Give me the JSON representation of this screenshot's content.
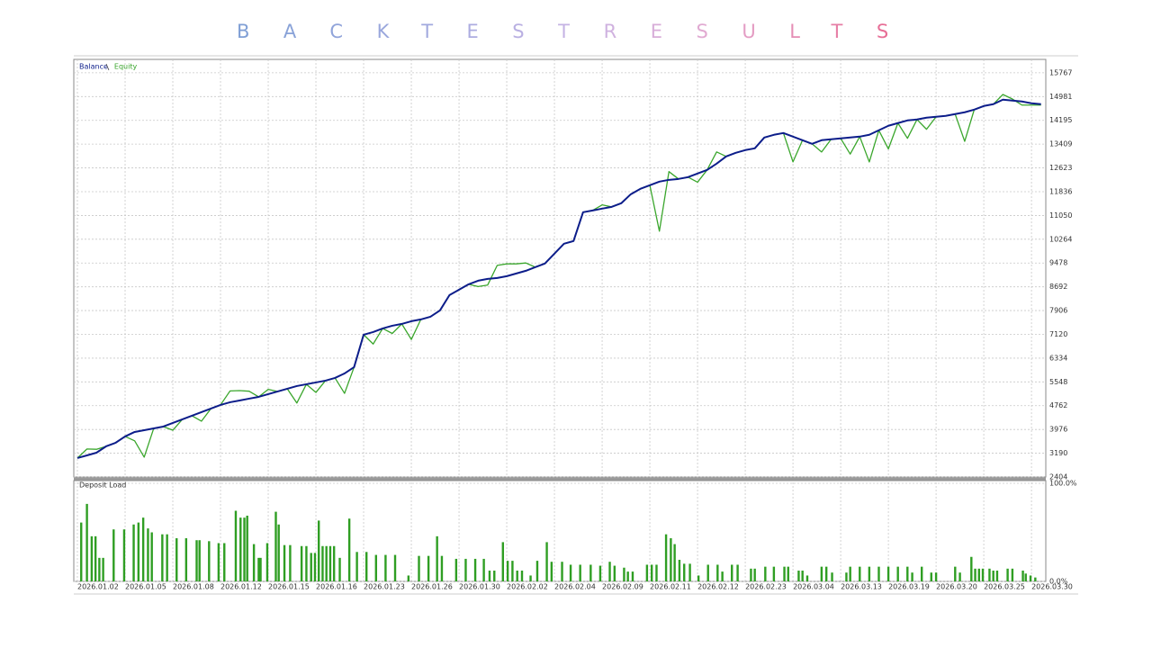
{
  "title": "BACKTEST RESULTS",
  "chart_data": [
    {
      "type": "line",
      "x": [
        0,
        1,
        2,
        3,
        4,
        5,
        6,
        7,
        8,
        9,
        10,
        11,
        12,
        13,
        14,
        15,
        16,
        17,
        18,
        19,
        20,
        21,
        22,
        23,
        24,
        25,
        26,
        27,
        28,
        29,
        30,
        31,
        32,
        33,
        34,
        35,
        36,
        37,
        38,
        39,
        40,
        41,
        42,
        43,
        44,
        45,
        46,
        47,
        48,
        49,
        50,
        51,
        52,
        53,
        54,
        55,
        56,
        57,
        58,
        59,
        60,
        61,
        62,
        63,
        64,
        65,
        66,
        67,
        68,
        69,
        70,
        71,
        72,
        73,
        74,
        75,
        76,
        77,
        78,
        79,
        80,
        81,
        82,
        83,
        84,
        85,
        86,
        87,
        88,
        89,
        90,
        91,
        92,
        93,
        94,
        95,
        96,
        97,
        98,
        99,
        100,
        101
      ],
      "series": [
        {
          "name": "Balance",
          "color": "#0c1d8a",
          "values": [
            3030,
            3118,
            3208,
            3416,
            3535,
            3744,
            3893,
            3952,
            4012,
            4071,
            4190,
            4309,
            4428,
            4548,
            4666,
            4786,
            4875,
            4934,
            4994,
            5053,
            5143,
            5232,
            5321,
            5411,
            5470,
            5530,
            5589,
            5678,
            5828,
            6036,
            7108,
            7197,
            7316,
            7405,
            7465,
            7554,
            7614,
            7703,
            7911,
            8418,
            8596,
            8775,
            8894,
            8953,
            8983,
            9043,
            9132,
            9221,
            9341,
            9460,
            9787,
            10115,
            10204,
            11157,
            11216,
            11276,
            11335,
            11454,
            11752,
            11930,
            12049,
            12169,
            12228,
            12258,
            12317,
            12437,
            12556,
            12764,
            13002,
            13121,
            13211,
            13270,
            13627,
            13717,
            13776,
            13657,
            13538,
            13419,
            13538,
            13568,
            13598,
            13627,
            13657,
            13717,
            13866,
            14015,
            14104,
            14193,
            14223,
            14282,
            14312,
            14342,
            14401,
            14461,
            14550,
            14669,
            14729,
            14878,
            14848,
            14818,
            14759,
            14729
          ]
        },
        {
          "name": "Equity",
          "color": "#3aa62c",
          "values": [
            3030,
            3330,
            3320,
            3416,
            3535,
            3744,
            3600,
            3060,
            4012,
            4071,
            3950,
            4309,
            4428,
            4250,
            4666,
            4786,
            5250,
            5260,
            5240,
            5053,
            5300,
            5232,
            5321,
            4850,
            5470,
            5200,
            5589,
            5678,
            5170,
            6036,
            7108,
            6800,
            7316,
            7150,
            7465,
            6950,
            7614,
            7703,
            7911,
            8418,
            8596,
            8775,
            8700,
            8750,
            9400,
            9450,
            9450,
            9480,
            9341,
            9460,
            9787,
            10115,
            10204,
            11157,
            11216,
            11400,
            11335,
            11454,
            11752,
            11930,
            12049,
            10530,
            12500,
            12258,
            12317,
            12150,
            12556,
            13150,
            13002,
            13121,
            13211,
            13270,
            13627,
            13717,
            13776,
            12823,
            13538,
            13419,
            13150,
            13568,
            13598,
            13080,
            13657,
            12820,
            13866,
            13250,
            14104,
            13600,
            14223,
            13900,
            14312,
            14342,
            14401,
            13500,
            14550,
            14669,
            14729,
            15050,
            14900,
            14700,
            14700,
            14700
          ]
        }
      ],
      "xlim": [
        0,
        101.5
      ],
      "ylim": [
        2404,
        16180
      ],
      "yticks": [
        2404,
        3190,
        3976,
        4762,
        5548,
        6334,
        7120,
        7906,
        8692,
        9478,
        10264,
        11050,
        11836,
        12623,
        13409,
        14195,
        14981,
        15767
      ],
      "grid": true
    },
    {
      "type": "bar",
      "title": "Deposit Load",
      "color": "#2f9e23",
      "x": [
        0.4,
        1.0,
        1.5,
        1.9,
        2.3,
        2.7,
        3.8,
        4.9,
        5.9,
        6.4,
        6.9,
        7.4,
        7.8,
        8.9,
        9.4,
        10.4,
        11.4,
        12.5,
        12.8,
        13.8,
        14.8,
        15.4,
        16.6,
        17.1,
        17.5,
        17.8,
        18.5,
        19.0,
        19.2,
        19.9,
        20.8,
        21.1,
        21.7,
        22.3,
        23.5,
        24.0,
        24.5,
        24.9,
        25.3,
        25.7,
        26.1,
        26.5,
        26.9,
        27.5,
        28.5,
        29.3,
        30.3,
        31.3,
        32.3,
        33.3,
        34.7,
        35.8,
        36.8,
        37.7,
        38.2,
        39.7,
        40.7,
        41.7,
        42.6,
        43.2,
        43.7,
        44.6,
        45.1,
        45.6,
        46.1,
        46.6,
        47.5,
        48.2,
        49.2,
        49.7,
        50.8,
        51.7,
        52.7,
        53.8,
        54.8,
        55.8,
        56.3,
        57.3,
        57.7,
        58.2,
        59.7,
        60.2,
        60.7,
        61.7,
        62.2,
        62.6,
        63.1,
        63.6,
        64.2,
        65.1,
        66.1,
        67.1,
        67.6,
        68.6,
        69.2,
        70.6,
        71.0,
        72.1,
        73.0,
        74.1,
        74.5,
        75.6,
        76.0,
        76.5,
        78.0,
        78.5,
        79.1,
        80.6,
        81.0,
        82.0,
        83.0,
        84.0,
        85.0,
        86.0,
        87.0,
        87.5,
        88.5,
        89.5,
        90.0,
        92.0,
        92.5,
        93.7,
        94.1,
        94.5,
        94.9,
        95.6,
        96.0,
        96.4,
        97.5,
        98.0,
        99.1,
        99.4,
        99.9,
        100.4
      ],
      "values": [
        60,
        79,
        46,
        46,
        24,
        24,
        53,
        53,
        58,
        60,
        65,
        54,
        50,
        48,
        48,
        44,
        44,
        42,
        42,
        41,
        39,
        39,
        72,
        65,
        65,
        67,
        38,
        24,
        24,
        39,
        71,
        58,
        37,
        37,
        36,
        36,
        29,
        29,
        62,
        36,
        36,
        36,
        36,
        24,
        64,
        30,
        30,
        27,
        27,
        27,
        6,
        26,
        26,
        46,
        26,
        23,
        23,
        23,
        23,
        11,
        11,
        40,
        21,
        21,
        11,
        11,
        6,
        21,
        40,
        20,
        20,
        17,
        17,
        17,
        16,
        20,
        16,
        14,
        10,
        10,
        17,
        17,
        17,
        48,
        44,
        38,
        22,
        18,
        18,
        6,
        17,
        17,
        10,
        17,
        17,
        13,
        13,
        15,
        15,
        15,
        15,
        11,
        11,
        6,
        15,
        15,
        9,
        9,
        15,
        15,
        15,
        15,
        15,
        15,
        15,
        9,
        15,
        9,
        9,
        15,
        9,
        25,
        13,
        13,
        13,
        13,
        11,
        11,
        13,
        13,
        11,
        8,
        6,
        4
      ],
      "xlim": [
        0,
        101.5
      ],
      "ylim": [
        0,
        100
      ],
      "yticks": [
        {
          "value": 100,
          "label": "100.0%"
        },
        {
          "value": 0,
          "label": "0.0%"
        }
      ],
      "xticks": [
        {
          "value": 0,
          "label": "2026.01.02"
        },
        {
          "value": 5,
          "label": "2026.01.05"
        },
        {
          "value": 10,
          "label": "2026.01.08"
        },
        {
          "value": 15,
          "label": "2026.01.12"
        },
        {
          "value": 20,
          "label": "2026.01.15"
        },
        {
          "value": 25,
          "label": "2026.01.16"
        },
        {
          "value": 30,
          "label": "2026.01.23"
        },
        {
          "value": 35,
          "label": "2026.01.26"
        },
        {
          "value": 40,
          "label": "2026.01.30"
        },
        {
          "value": 45,
          "label": "2026.02.02"
        },
        {
          "value": 50,
          "label": "2026.02.04"
        },
        {
          "value": 55,
          "label": "2026.02.09"
        },
        {
          "value": 60,
          "label": "2026.02.11"
        },
        {
          "value": 65,
          "label": "2026.02.12"
        },
        {
          "value": 70,
          "label": "2026.02.23"
        },
        {
          "value": 75,
          "label": "2026.03.04"
        },
        {
          "value": 80,
          "label": "2026.03.13"
        },
        {
          "value": 85,
          "label": "2026.03.19"
        },
        {
          "value": 90,
          "label": "2026.03.20"
        },
        {
          "value": 95,
          "label": "2026.03.25"
        },
        {
          "value": 100,
          "label": "2026.03.30"
        }
      ],
      "grid": true
    }
  ]
}
